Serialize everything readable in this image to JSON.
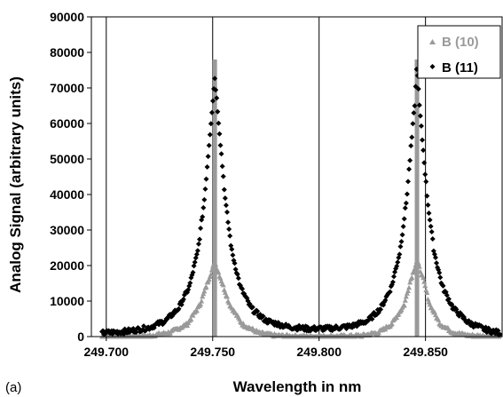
{
  "chart_data": {
    "type": "scatter",
    "panel_label": "(a)",
    "xlabel": "Wavelength in nm",
    "ylabel": "Analog Signal (arbitrary units)",
    "xlim": [
      249.693,
      249.886
    ],
    "ylim": [
      0,
      90000
    ],
    "x_ticks": [
      249.7,
      249.75,
      249.8,
      249.85
    ],
    "x_tick_labels": [
      "249.700",
      "249.750",
      "249.800",
      "249.850"
    ],
    "y_ticks": [
      0,
      10000,
      20000,
      30000,
      40000,
      50000,
      60000,
      70000,
      80000,
      90000
    ],
    "y_tick_labels": [
      "0",
      "10000",
      "20000",
      "30000",
      "40000",
      "50000",
      "60000",
      "70000",
      "80000",
      "90000"
    ],
    "grid": {
      "vertical": true,
      "horizontal": false
    },
    "legend_position": "top-right",
    "series": [
      {
        "name": "B (10)",
        "color": "#9a9a9a",
        "marker": "triangle",
        "peaks": [
          {
            "x": 249.751,
            "peak": 21000,
            "spike": 78000
          },
          {
            "x": 249.846,
            "peak": 21500,
            "spike": 78000
          }
        ],
        "x": [
          249.698,
          249.71,
          249.72,
          249.73,
          249.738,
          249.744,
          249.748,
          249.751,
          249.754,
          249.758,
          249.764,
          249.772,
          249.78,
          249.79,
          249.8,
          249.81,
          249.82,
          249.828,
          249.834,
          249.84,
          249.843,
          249.846,
          249.849,
          249.852,
          249.857,
          249.863,
          249.87,
          249.878,
          249.885
        ],
        "y": [
          0,
          0,
          200,
          1200,
          3500,
          9000,
          16000,
          21000,
          16000,
          9000,
          3500,
          1000,
          300,
          100,
          0,
          100,
          300,
          1200,
          3500,
          9000,
          16000,
          21500,
          16000,
          9000,
          3500,
          1200,
          400,
          100,
          0
        ]
      },
      {
        "name": "B (11)",
        "color": "#000000",
        "marker": "diamond",
        "x": [
          249.698,
          249.71,
          249.72,
          249.728,
          249.734,
          249.739,
          249.743,
          249.746,
          249.748,
          249.75,
          249.751,
          249.752,
          249.754,
          249.756,
          249.759,
          249.763,
          249.768,
          249.775,
          249.785,
          249.795,
          249.805,
          249.815,
          249.823,
          249.829,
          249.834,
          249.838,
          249.841,
          249.843,
          249.845,
          249.846,
          249.847,
          249.849,
          249.851,
          249.854,
          249.858,
          249.863,
          249.87,
          249.878,
          249.885
        ],
        "y": [
          1000,
          1500,
          2500,
          4500,
          8000,
          14000,
          24000,
          38000,
          52000,
          66000,
          73000,
          66000,
          52000,
          38000,
          24000,
          14000,
          8000,
          4500,
          2800,
          2200,
          2300,
          2900,
          4500,
          8000,
          14000,
          24000,
          38000,
          52000,
          66000,
          77000,
          66000,
          52000,
          38000,
          24000,
          14000,
          8000,
          4000,
          2000,
          1000
        ]
      }
    ]
  }
}
